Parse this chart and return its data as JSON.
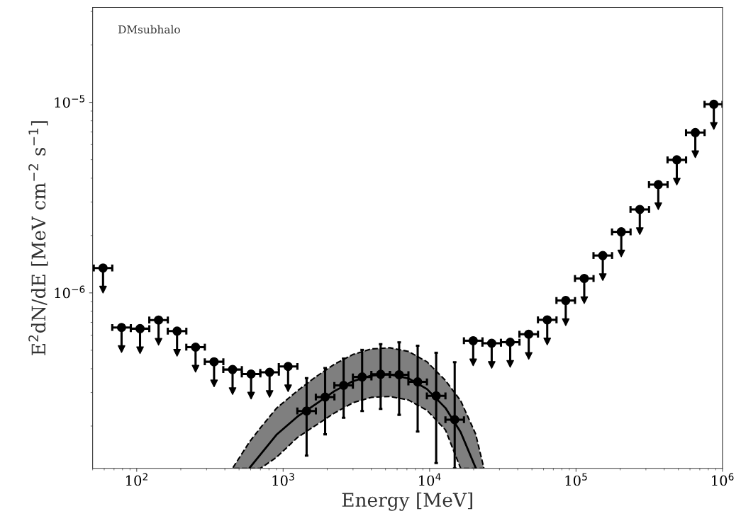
{
  "chart_data": {
    "type": "scatter",
    "xlabel": "Energy [MeV]",
    "ylabel": "E$^{2}$dN/dE [MeV cm$^{−2}$ s$^{−1}$]",
    "annotations": [
      "DMsubhalo"
    ],
    "log": "xy",
    "grid": false,
    "marker": "circle",
    "xlim": [
      50,
      1000000
    ],
    "ylim": [
      1.2e-07,
      3.15e-05
    ],
    "xticks": [
      {
        "value": 100,
        "label": "10$^{2}$"
      },
      {
        "value": 1000,
        "label": "10$^{3}$"
      },
      {
        "value": 10000,
        "label": "10$^{4}$"
      },
      {
        "value": 100000,
        "label": "10$^{5}$"
      },
      {
        "value": 1000000,
        "label": "10$^{6}$"
      }
    ],
    "yticks": [
      {
        "value": 1e-06,
        "label": "10$^{−6}$"
      },
      {
        "value": 1e-05,
        "label": "10$^{−5}$"
      }
    ],
    "series": [
      {
        "color": "#000000",
        "x": [
          58.9,
          78.8,
          105.4,
          141.0,
          188.6,
          252.3,
          337.5,
          451.5,
          604.0,
          808.0,
          1081,
          19850,
          26550,
          35520,
          47520,
          63580,
          85050,
          113800,
          152300,
          203700,
          272500,
          364500,
          487700,
          652400,
          872800
        ],
        "values": [
          1.35e-06,
          6.58e-07,
          6.49e-07,
          7.2e-07,
          6.3e-07,
          5.19e-07,
          4.35e-07,
          3.96e-07,
          3.75e-07,
          3.83e-07,
          4.11e-07,
          5.61e-07,
          5.44e-07,
          5.51e-07,
          6.07e-07,
          7.22e-07,
          9.12e-07,
          1.19e-06,
          1.57e-06,
          2.09e-06,
          2.74e-06,
          3.7e-06,
          4.99e-06,
          6.94e-06,
          9.77e-06
        ],
        "errors": [
          [
            1.04e-06,
            1.35e-06
          ],
          [
            5.07e-07,
            6.58e-07
          ],
          [
            5e-07,
            6.49e-07
          ],
          [
            5.54e-07,
            7.2e-07
          ],
          [
            4.85e-07,
            6.3e-07
          ],
          [
            4e-07,
            5.19e-07
          ],
          [
            3.35e-07,
            4.35e-07
          ],
          [
            3.05e-07,
            3.96e-07
          ],
          [
            2.89e-07,
            3.75e-07
          ],
          [
            2.95e-07,
            3.83e-07
          ],
          [
            3.16e-07,
            4.11e-07
          ],
          [
            4.32e-07,
            5.61e-07
          ],
          [
            4.19e-07,
            5.44e-07
          ],
          [
            4.24e-07,
            5.51e-07
          ],
          [
            4.67e-07,
            6.07e-07
          ],
          [
            5.56e-07,
            7.22e-07
          ],
          [
            7.02e-07,
            9.12e-07
          ],
          [
            9.16e-07,
            1.19e-06
          ],
          [
            1.21e-06,
            1.57e-06
          ],
          [
            1.61e-06,
            2.09e-06
          ],
          [
            2.11e-06,
            2.74e-06
          ],
          [
            2.85e-06,
            3.7e-06
          ],
          [
            3.84e-06,
            4.99e-06
          ],
          [
            5.34e-06,
            6.94e-06
          ],
          [
            7.52e-06,
            9.77e-06
          ]
        ],
        "xerrors": [
          [
            50.9,
            68.1
          ],
          [
            68.1,
            91.2
          ],
          [
            91.1,
            121.9
          ],
          [
            121.9,
            163.1
          ],
          [
            163.0,
            218.2
          ],
          [
            218.1,
            291.9
          ],
          [
            291.7,
            390.5
          ],
          [
            390.2,
            522.4
          ],
          [
            522.0,
            698.8
          ],
          [
            698,
            935
          ],
          [
            934,
            1251
          ],
          [
            17160,
            22970
          ],
          [
            22950,
            30720
          ],
          [
            30700,
            41100
          ],
          [
            41070,
            54980
          ],
          [
            54950,
            73560
          ],
          [
            73510,
            98400
          ],
          [
            98360,
            131700
          ],
          [
            131600,
            176200
          ],
          [
            176100,
            235700
          ],
          [
            235500,
            315300
          ],
          [
            315000,
            421700
          ],
          [
            421500,
            564300
          ],
          [
            563900,
            754800
          ],
          [
            754400,
            1000000
          ]
        ]
      },
      {
        "color": "#000000",
        "x": [
          1446,
          1935,
          2588,
          3463,
          4632,
          6197,
          8290,
          11090,
          14840
        ],
        "values": [
          2.4e-07,
          2.84e-07,
          3.27e-07,
          3.62e-07,
          3.74e-07,
          3.72e-07,
          3.41e-07,
          2.88e-07,
          2.16e-07
        ],
        "errors": [
          [
            1.4e-07,
            3.57e-07
          ],
          [
            1.81e-07,
            4.03e-07
          ],
          [
            2.21e-07,
            4.52e-07
          ],
          [
            2.4e-07,
            5.02e-07
          ],
          [
            2.46e-07,
            5.38e-07
          ],
          [
            2.29e-07,
            5.5e-07
          ],
          [
            1.87e-07,
            5.28e-07
          ],
          [
            1.28e-07,
            4.85e-07
          ],
          [
            1.2e-07,
            4.33e-07
          ]
        ],
        "xerrors": [
          [
            1250,
            1673
          ],
          [
            1672,
            2239
          ],
          [
            2237,
            2994
          ],
          [
            2993,
            4007
          ],
          [
            4003,
            5359
          ],
          [
            5356,
            7170
          ],
          [
            7165,
            9592
          ],
          [
            9585,
            12830
          ],
          [
            12830,
            17170
          ]
        ]
      },
      {
        "type": "line",
        "color": "#000000",
        "line_style": "solid",
        "marker": "none",
        "x": [
          454,
          592,
          700,
          900,
          1250,
          1673,
          2238,
          2994,
          4005,
          5357,
          7167,
          9590,
          12830,
          16290,
          20610,
          23440
        ],
        "values": [
          null,
          1.21e-07,
          1.42e-07,
          1.8e-07,
          2.24e-07,
          2.61e-07,
          3.05e-07,
          3.44e-07,
          3.68e-07,
          3.73e-07,
          3.56e-07,
          3.13e-07,
          2.49e-07,
          1.86e-07,
          1.21e-07,
          null
        ],
        "upper": [
          1.21e-07,
          1.66e-07,
          1.96e-07,
          2.48e-07,
          3.06e-07,
          3.63e-07,
          4.22e-07,
          4.75e-07,
          5.08e-07,
          5.15e-07,
          4.93e-07,
          4.35e-07,
          3.47e-07,
          2.72e-07,
          1.82e-07,
          1.21e-07
        ],
        "lower": [
          1.2e-07,
          1.2e-07,
          1.2e-07,
          1.37e-07,
          1.74e-07,
          2.02e-07,
          2.34e-07,
          2.65e-07,
          2.83e-07,
          2.86e-07,
          2.74e-07,
          2.42e-07,
          1.91e-07,
          1.2e-07,
          1.2e-07,
          1.2e-07
        ]
      }
    ]
  }
}
